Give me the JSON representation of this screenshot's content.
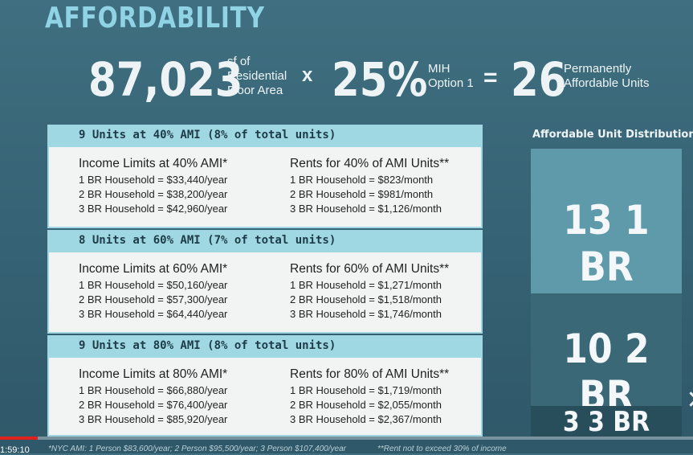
{
  "title": "AFFORDABILITY",
  "equation": {
    "area_value": "87,023",
    "area_unit_line1": "sf of",
    "area_unit_line2": "Residential",
    "area_unit_line3": "Floor Area",
    "times": "x",
    "percent": "25%",
    "option_line1": "MIH",
    "option_line2": "Option 1",
    "equals": "=",
    "result": "26",
    "result_line1": "Permanently",
    "result_line2": "Affordable Units"
  },
  "sections": [
    {
      "header": "9 Units at 40% AMI (8% of total units)",
      "income_title": "Income Limits at 40% AMI*",
      "income_lines": [
        "1 BR Household = $33,440/year",
        "2 BR Household = $38,200/year",
        "3 BR Household = $42,960/year"
      ],
      "rent_title": "Rents for 40% of AMI Units**",
      "rent_lines": [
        "1 BR Household = $823/month",
        "2 BR Household = $981/month",
        "3 BR Household = $1,126/month"
      ]
    },
    {
      "header": "8 Units at 60% AMI (7% of total units)",
      "income_title": "Income Limits at 60% AMI*",
      "income_lines": [
        "1 BR Household = $50,160/year",
        "2 BR Household = $57,300/year",
        "3 BR Household = $64,440/year"
      ],
      "rent_title": "Rents for 60% of AMI Units**",
      "rent_lines": [
        "1 BR Household = $1,271/month",
        "2 BR Household = $1,518/month",
        "3 BR Household = $1,746/month"
      ]
    },
    {
      "header": "9 Units at 80% AMI (8% of total units)",
      "income_title": "Income Limits at 80% AMI*",
      "income_lines": [
        "1 BR Household = $66,880/year",
        "2 BR Household = $76,400/year",
        "3 BR Household = $85,920/year"
      ],
      "rent_title": "Rents for 80% of AMI Units**",
      "rent_lines": [
        "1 BR Household = $1,719/month",
        "2 BR Household = $2,055/month",
        "3 BR Household = $2,367/month"
      ]
    }
  ],
  "distribution": {
    "title": "Affordable Unit Distribution",
    "blocks": [
      {
        "label": "13 1 BR",
        "color": "#5e9aaa"
      },
      {
        "label": "10 2 BR",
        "color": "#3a6877"
      },
      {
        "label": "3 3 BR",
        "color": "#284e5c"
      }
    ]
  },
  "footnotes": {
    "ami": "*NYC AMI: 1 Person $83,600/year; 2 Person $95,500/year; 3 Person $107,400/year",
    "rent": "**Rent not to exceed 30% of income"
  },
  "player": {
    "timecode": "1:59:10",
    "progress_fraction": 0.055
  }
}
